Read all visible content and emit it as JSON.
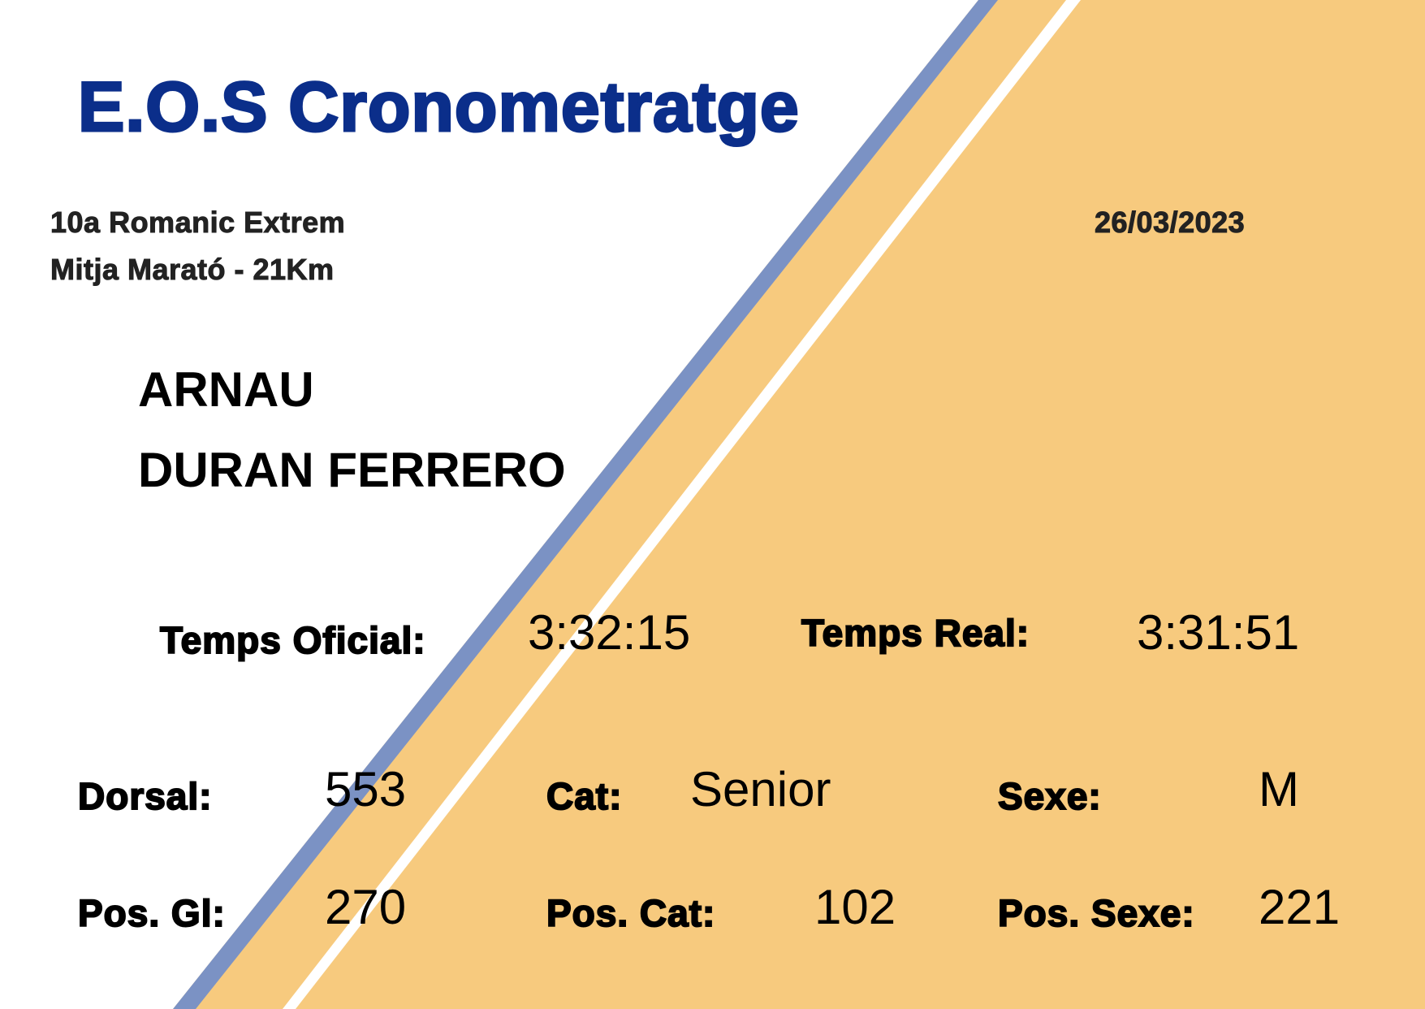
{
  "brand": {
    "title": "E.O.S Cronometratge",
    "title_color": "#0b2e8a"
  },
  "colors": {
    "orange": "#f7ca7e",
    "blue_stripe": "#7b92c4",
    "white_stripe": "#ffffff"
  },
  "event": {
    "name": "10a Romanic Extrem",
    "race": "Mitja Marató - 21Km",
    "date": "26/03/2023"
  },
  "runner": {
    "first_name": "ARNAU",
    "last_name": "DURAN FERRERO"
  },
  "times": {
    "official_label": "Temps Oficial:",
    "official_value": "3:32:15",
    "real_label": "Temps Real:",
    "real_value": "3:31:51"
  },
  "details": {
    "dorsal_label": "Dorsal:",
    "dorsal_value": "553",
    "cat_label": "Cat:",
    "cat_value": "Senior",
    "sexe_label": "Sexe:",
    "sexe_value": "M",
    "pos_gl_label": "Pos. Gl:",
    "pos_gl_value": "270",
    "pos_cat_label": "Pos. Cat:",
    "pos_cat_value": "102",
    "pos_sexe_label": "Pos. Sexe:",
    "pos_sexe_value": "221"
  }
}
